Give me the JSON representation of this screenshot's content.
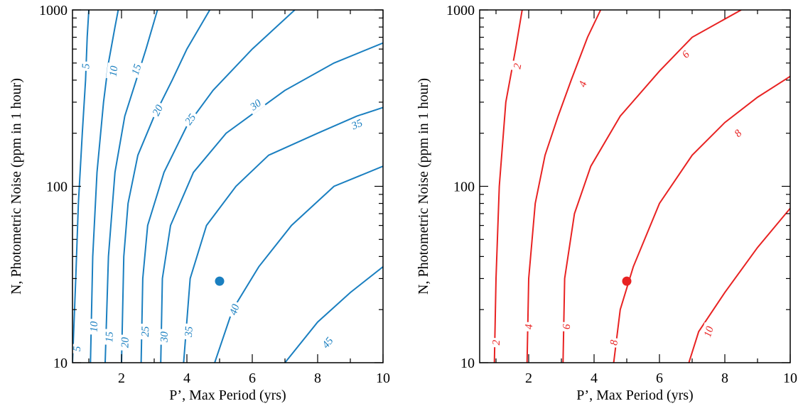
{
  "colors": {
    "panel_left": "#1a7fc0",
    "panel_right": "#e82222",
    "axes": "#000000"
  },
  "chart_data": [
    {
      "type": "contour",
      "xlabel": "P’, Max Period (yrs)",
      "ylabel": "N, Photometric Noise (ppm in 1 hour)",
      "xlim": [
        0.5,
        10
      ],
      "ylim": [
        10,
        1000
      ],
      "yscale": "log",
      "xticks": [
        2,
        4,
        6,
        8,
        10
      ],
      "yticks": [
        10,
        100,
        1000
      ],
      "xtick_labels": [
        "2",
        "4",
        "6",
        "8",
        "10"
      ],
      "ytick_labels": [
        "10",
        "100",
        "1000"
      ],
      "color": "#1a7fc0",
      "marker": {
        "x": 5,
        "y": 29
      },
      "contours": [
        {
          "level": "5",
          "points": [
            [
              0.5,
              10
            ],
            [
              0.6,
              30
            ],
            [
              0.68,
              80
            ],
            [
              0.8,
              200
            ],
            [
              0.9,
              400
            ],
            [
              0.95,
              700
            ],
            [
              1.0,
              1000
            ]
          ],
          "labels": [
            [
              0.63,
              12
            ],
            [
              0.9,
              480
            ]
          ]
        },
        {
          "level": "10",
          "points": [
            [
              1.05,
              10
            ],
            [
              1.12,
              40
            ],
            [
              1.25,
              120
            ],
            [
              1.45,
              300
            ],
            [
              1.6,
              500
            ],
            [
              1.8,
              800
            ],
            [
              1.9,
              1000
            ]
          ],
          "labels": [
            [
              1.15,
              16
            ],
            [
              1.75,
              450
            ]
          ]
        },
        {
          "level": "15",
          "points": [
            [
              1.5,
              10
            ],
            [
              1.6,
              40
            ],
            [
              1.8,
              120
            ],
            [
              2.1,
              250
            ],
            [
              2.45,
              400
            ],
            [
              2.75,
              600
            ],
            [
              3.1,
              1000
            ]
          ],
          "labels": [
            [
              1.62,
              14
            ],
            [
              2.45,
              460
            ]
          ]
        },
        {
          "level": "20",
          "points": [
            [
              2.0,
              10
            ],
            [
              2.07,
              40
            ],
            [
              2.2,
              80
            ],
            [
              2.5,
              150
            ],
            [
              3.0,
              250
            ],
            [
              3.55,
              400
            ],
            [
              4.0,
              600
            ],
            [
              4.7,
              1000
            ]
          ],
          "labels": [
            [
              2.1,
              13
            ],
            [
              3.1,
              270
            ]
          ]
        },
        {
          "level": "25",
          "points": [
            [
              2.6,
              10
            ],
            [
              2.65,
              30
            ],
            [
              2.8,
              60
            ],
            [
              3.3,
              120
            ],
            [
              4.0,
              220
            ],
            [
              4.8,
              350
            ],
            [
              6.0,
              600
            ],
            [
              7.3,
              1000
            ]
          ],
          "labels": [
            [
              2.72,
              15
            ],
            [
              4.1,
              240
            ]
          ]
        },
        {
          "level": "30",
          "points": [
            [
              3.2,
              10
            ],
            [
              3.25,
              30
            ],
            [
              3.5,
              60
            ],
            [
              4.2,
              120
            ],
            [
              5.2,
              200
            ],
            [
              7.0,
              350
            ],
            [
              8.5,
              500
            ],
            [
              10.0,
              650
            ]
          ],
          "labels": [
            [
              3.3,
              14
            ],
            [
              6.1,
              290
            ]
          ]
        },
        {
          "level": "35",
          "points": [
            [
              3.9,
              10
            ],
            [
              4.1,
              30
            ],
            [
              4.6,
              60
            ],
            [
              5.5,
              100
            ],
            [
              6.5,
              150
            ],
            [
              8.0,
              200
            ],
            [
              9.2,
              250
            ],
            [
              10.0,
              280
            ]
          ],
          "labels": [
            [
              4.05,
              15
            ],
            [
              9.2,
              225
            ]
          ]
        },
        {
          "level": "40",
          "points": [
            [
              4.85,
              10
            ],
            [
              5.4,
              20
            ],
            [
              6.2,
              35
            ],
            [
              7.2,
              60
            ],
            [
              8.5,
              100
            ],
            [
              10.0,
              130
            ]
          ],
          "labels": [
            [
              5.45,
              20
            ]
          ]
        },
        {
          "level": "45",
          "points": [
            [
              7.0,
              10
            ],
            [
              8.0,
              17
            ],
            [
              9.0,
              25
            ],
            [
              10.0,
              35
            ]
          ],
          "labels": [
            [
              8.3,
              13
            ]
          ]
        }
      ]
    },
    {
      "type": "contour",
      "xlabel": "P’, Max Period (yrs)",
      "ylabel": "N, Photometric Noise (ppm in 1 hour)",
      "xlim": [
        0.5,
        10
      ],
      "ylim": [
        10,
        1000
      ],
      "yscale": "log",
      "xticks": [
        2,
        4,
        6,
        8,
        10
      ],
      "yticks": [
        10,
        100,
        1000
      ],
      "xtick_labels": [
        "2",
        "4",
        "6",
        "8",
        "10"
      ],
      "ytick_labels": [
        "10",
        "100",
        "1000"
      ],
      "color": "#e82222",
      "marker": {
        "x": 5,
        "y": 29
      },
      "contours": [
        {
          "level": "2",
          "points": [
            [
              0.95,
              10
            ],
            [
              1.0,
              30
            ],
            [
              1.1,
              100
            ],
            [
              1.3,
              300
            ],
            [
              1.6,
              600
            ],
            [
              1.8,
              1000
            ]
          ],
          "labels": [
            [
              1.0,
              13
            ],
            [
              1.65,
              480
            ]
          ]
        },
        {
          "level": "4",
          "points": [
            [
              1.95,
              10
            ],
            [
              2.0,
              30
            ],
            [
              2.2,
              80
            ],
            [
              2.5,
              150
            ],
            [
              2.9,
              250
            ],
            [
              3.3,
              400
            ],
            [
              3.8,
              700
            ],
            [
              4.2,
              1000
            ]
          ],
          "labels": [
            [
              2.0,
              16
            ],
            [
              3.65,
              380
            ]
          ]
        },
        {
          "level": "6",
          "points": [
            [
              3.05,
              10
            ],
            [
              3.1,
              30
            ],
            [
              3.4,
              70
            ],
            [
              3.9,
              130
            ],
            [
              4.8,
              250
            ],
            [
              6.0,
              450
            ],
            [
              7.0,
              700
            ],
            [
              8.5,
              1000
            ]
          ],
          "labels": [
            [
              3.15,
              16
            ],
            [
              6.8,
              560
            ]
          ]
        },
        {
          "level": "8",
          "points": [
            [
              4.6,
              10
            ],
            [
              4.8,
              20
            ],
            [
              5.2,
              35
            ],
            [
              6.0,
              80
            ],
            [
              7.0,
              150
            ],
            [
              8.0,
              230
            ],
            [
              9.0,
              320
            ],
            [
              10.0,
              420
            ]
          ],
          "labels": [
            [
              4.6,
              13
            ],
            [
              8.4,
              200
            ]
          ]
        },
        {
          "level": "10",
          "points": [
            [
              6.9,
              10
            ],
            [
              7.2,
              15
            ],
            [
              8.0,
              25
            ],
            [
              9.0,
              45
            ],
            [
              10.0,
              75
            ]
          ],
          "labels": [
            [
              7.5,
              15
            ]
          ]
        }
      ]
    }
  ]
}
